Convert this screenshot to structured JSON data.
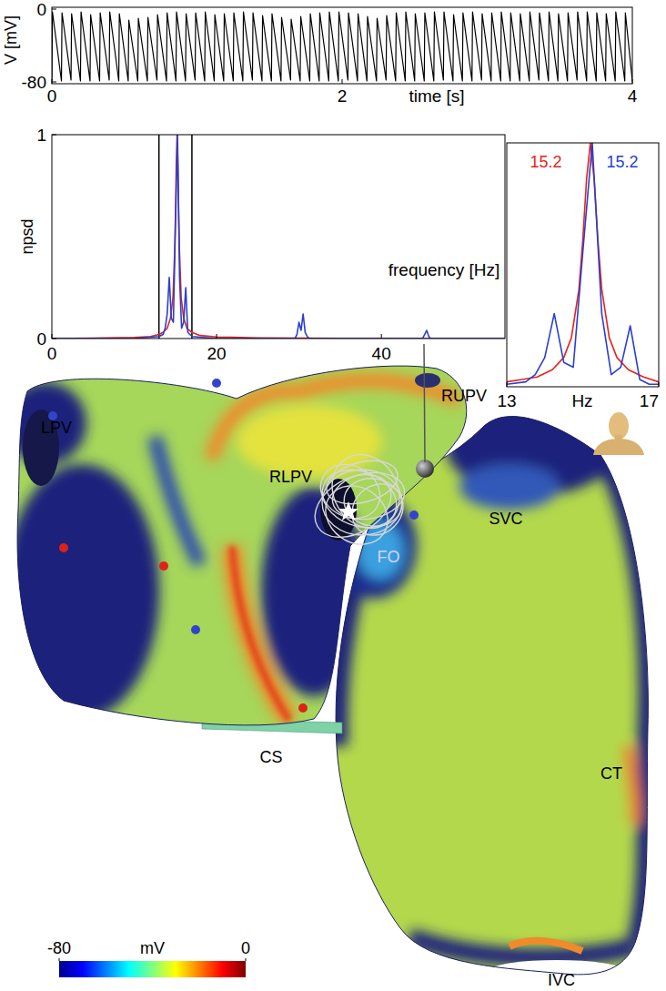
{
  "chart_data": [
    {
      "type": "line",
      "ylabel": "V [mV]",
      "xlabel": "time [s]",
      "xlim": [
        0,
        4
      ],
      "xticks": [
        0,
        2,
        4
      ],
      "ylim": [
        -82,
        2
      ],
      "yticks": [
        -80,
        0
      ],
      "x": [
        0,
        0.004,
        0.066,
        0.07,
        0.132,
        0.136,
        0.197,
        0.201,
        0.263,
        0.267,
        0.329,
        0.333,
        0.395,
        0.399,
        0.461,
        0.465,
        0.526,
        0.53,
        0.592,
        0.596,
        0.658,
        0.662,
        0.724,
        0.728,
        0.79,
        0.794,
        0.855,
        0.859,
        0.921,
        0.925,
        0.987,
        0.991,
        1.053,
        1.057,
        1.119,
        1.123,
        1.184,
        1.188,
        1.25,
        1.254,
        1.316,
        1.32,
        1.382,
        1.386,
        1.448,
        1.452,
        1.513,
        1.517,
        1.579,
        1.583,
        1.645,
        1.649,
        1.711,
        1.715,
        1.777,
        1.781,
        1.842,
        1.846,
        1.908,
        1.912,
        1.974,
        1.978,
        2.04,
        2.044,
        2.106,
        2.11,
        2.171,
        2.175,
        2.237,
        2.241,
        2.303,
        2.307,
        2.369,
        2.373,
        2.435,
        2.439,
        2.5,
        2.504,
        2.566,
        2.57,
        2.632,
        2.636,
        2.698,
        2.702,
        2.764,
        2.768,
        2.829,
        2.833,
        2.895,
        2.899,
        2.961,
        2.965,
        3.027,
        3.031,
        3.093,
        3.097,
        3.158,
        3.162,
        3.224,
        3.228,
        3.29,
        3.294,
        3.356,
        3.36,
        3.422,
        3.426,
        3.487,
        3.491,
        3.553,
        3.557,
        3.619,
        3.623,
        3.685,
        3.689,
        3.751,
        3.755,
        3.816,
        3.82,
        3.882,
        3.886,
        3.948,
        3.952,
        4.0
      ],
      "series": [
        {
          "color": "#000000",
          "values": [
            -79,
            -3,
            -79,
            -4,
            -78,
            -5,
            -79,
            -3,
            -79,
            -6,
            -79,
            -4,
            -78,
            -3,
            -79,
            -5,
            -79,
            -12,
            -79,
            -10,
            -79,
            -9,
            -78,
            -6,
            -79,
            -4,
            -79,
            -3,
            -79,
            -5,
            -78,
            -4,
            -79,
            -3,
            -79,
            -6,
            -79,
            -5,
            -79,
            -4,
            -79,
            -3,
            -78,
            -4,
            -79,
            -7,
            -79,
            -5,
            -79,
            -9,
            -78,
            -11,
            -79,
            -8,
            -79,
            -5,
            -79,
            -4,
            -79,
            -3,
            -79,
            -3,
            -78,
            -4,
            -79,
            -5,
            -79,
            -8,
            -79,
            -10,
            -78,
            -7,
            -79,
            -4,
            -79,
            -3,
            -79,
            -5,
            -79,
            -4,
            -79,
            -3,
            -78,
            -3,
            -79,
            -6,
            -79,
            -4,
            -79,
            -3,
            -78,
            -5,
            -79,
            -4,
            -79,
            -3,
            -79,
            -4,
            -79,
            -5,
            -79,
            -3,
            -78,
            -4,
            -79,
            -3,
            -79,
            -5,
            -79,
            -4,
            -78,
            -3,
            -79,
            -3,
            -79,
            -4,
            -79,
            -5,
            -79,
            -3,
            -79,
            -4,
            -79
          ]
        }
      ]
    },
    {
      "type": "line",
      "ylabel": "npsd",
      "xlabel": "frequency [Hz]",
      "xlim": [
        0,
        55
      ],
      "xticks": [
        0,
        20,
        40
      ],
      "ylim": [
        0,
        1
      ],
      "yticks": [
        0,
        1
      ],
      "marked_band": [
        13,
        17
      ],
      "series": [
        {
          "color": "#e8221c",
          "x": [
            0,
            5,
            10,
            12,
            13,
            13.5,
            14,
            14.4,
            14.7,
            14.9,
            15.0,
            15.1,
            15.2,
            15.3,
            15.4,
            15.5,
            15.7,
            16.0,
            16.4,
            17,
            18,
            20,
            25,
            30,
            35,
            40,
            45,
            50,
            55
          ],
          "values": [
            0,
            0.002,
            0.005,
            0.01,
            0.02,
            0.03,
            0.05,
            0.1,
            0.2,
            0.42,
            0.6,
            0.85,
            1,
            0.85,
            0.6,
            0.42,
            0.2,
            0.1,
            0.05,
            0.03,
            0.015,
            0.008,
            0.003,
            0.002,
            0.001,
            0.001,
            0,
            0,
            0
          ]
        },
        {
          "color": "#2a3fd0",
          "x": [
            0,
            10,
            13,
            13.5,
            13.75,
            14,
            14.25,
            14.5,
            14.75,
            15,
            15.25,
            15.5,
            15.75,
            16,
            16.25,
            16.5,
            17,
            20,
            29.5,
            29.75,
            30,
            30.25,
            30.5,
            30.75,
            31,
            31.25,
            35,
            45,
            45.25,
            45.5,
            45.75,
            46,
            50,
            55
          ],
          "values": [
            0,
            0,
            0.01,
            0.02,
            0.05,
            0.12,
            0.3,
            0.1,
            0.08,
            0.55,
            1,
            0.3,
            0.05,
            0.08,
            0.25,
            0.03,
            0.01,
            0,
            0,
            0.02,
            0.08,
            0.04,
            0.12,
            0.03,
            0.01,
            0,
            0,
            0,
            0.02,
            0.04,
            0.01,
            0,
            0,
            0
          ]
        }
      ]
    },
    {
      "type": "line",
      "xlabel": "Hz",
      "xlim": [
        13,
        17
      ],
      "xticks": [
        13,
        17
      ],
      "ylim": [
        0,
        1
      ],
      "tick_labels": "x",
      "peak_labels": [
        {
          "value": 15.2,
          "color": "#e8221c"
        },
        {
          "value": 15.2,
          "color": "#2a3fd0"
        }
      ],
      "series": [
        {
          "color": "#e8221c",
          "x": [
            13,
            13.4,
            13.8,
            14.2,
            14.5,
            14.7,
            14.9,
            15.0,
            15.1,
            15.2,
            15.3,
            15.4,
            15.5,
            15.7,
            15.9,
            16.2,
            16.6,
            17
          ],
          "values": [
            0.02,
            0.03,
            0.04,
            0.07,
            0.12,
            0.2,
            0.4,
            0.6,
            0.85,
            1,
            0.85,
            0.6,
            0.4,
            0.2,
            0.12,
            0.07,
            0.04,
            0.02
          ]
        },
        {
          "color": "#2a3fd0",
          "x": [
            13,
            13.5,
            13.75,
            14,
            14.25,
            14.5,
            14.75,
            15,
            15.25,
            15.5,
            15.75,
            16,
            16.25,
            16.5,
            16.75,
            17
          ],
          "values": [
            0.01,
            0.02,
            0.05,
            0.12,
            0.3,
            0.1,
            0.08,
            0.55,
            1,
            0.3,
            0.05,
            0.08,
            0.25,
            0.03,
            0.01,
            0.01
          ]
        }
      ]
    }
  ],
  "heart_map": {
    "labels": [
      "LPV",
      "RLPV",
      "RUPV",
      "SVC",
      "FO",
      "CS",
      "CT",
      "IVC"
    ],
    "colorbar": {
      "range": [
        -80,
        0
      ],
      "ticks": [
        -80,
        0
      ],
      "label": "mV"
    }
  }
}
